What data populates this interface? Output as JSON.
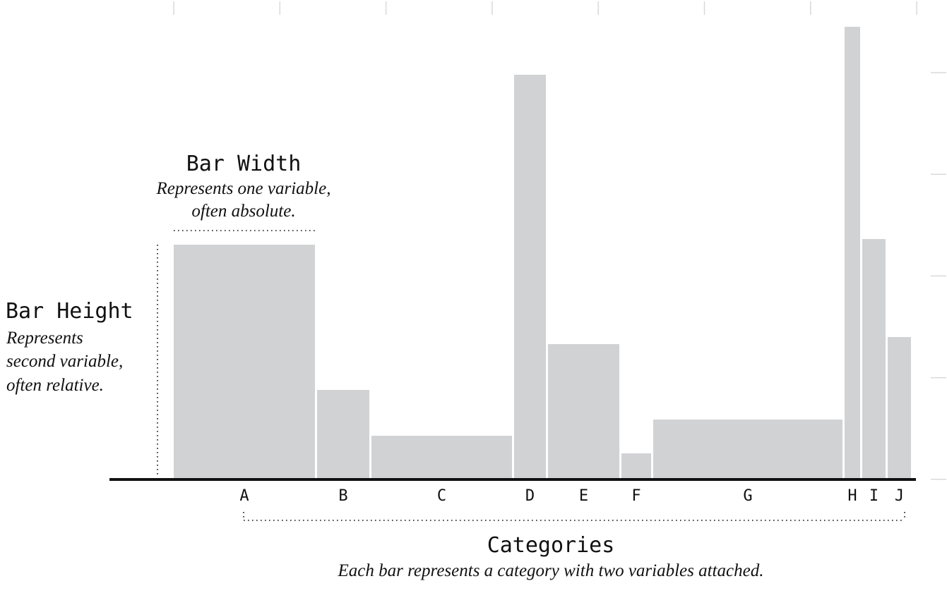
{
  "chart_data": {
    "type": "bar",
    "variable_width": true,
    "categories": [
      "A",
      "B",
      "C",
      "D",
      "E",
      "F",
      "G",
      "H",
      "I",
      "J"
    ],
    "widths": [
      200,
      74,
      199,
      45,
      101,
      42,
      268,
      22,
      33,
      33
    ],
    "values": [
      331,
      125,
      60,
      572,
      190,
      35,
      83,
      640,
      339,
      200
    ],
    "bar_color": "#d1d2d4",
    "axis_color": "#111111",
    "grid": false
  },
  "annotations": {
    "bar_width": {
      "title": "Bar Width",
      "lines": [
        "Represents one variable,",
        "often absolute."
      ]
    },
    "bar_height": {
      "title": "Bar Height",
      "lines": [
        "Represents",
        "second variable,",
        "often relative."
      ]
    },
    "categories": {
      "title": "Categories",
      "lines": [
        "Each bar represents a category with two variables attached."
      ]
    }
  }
}
